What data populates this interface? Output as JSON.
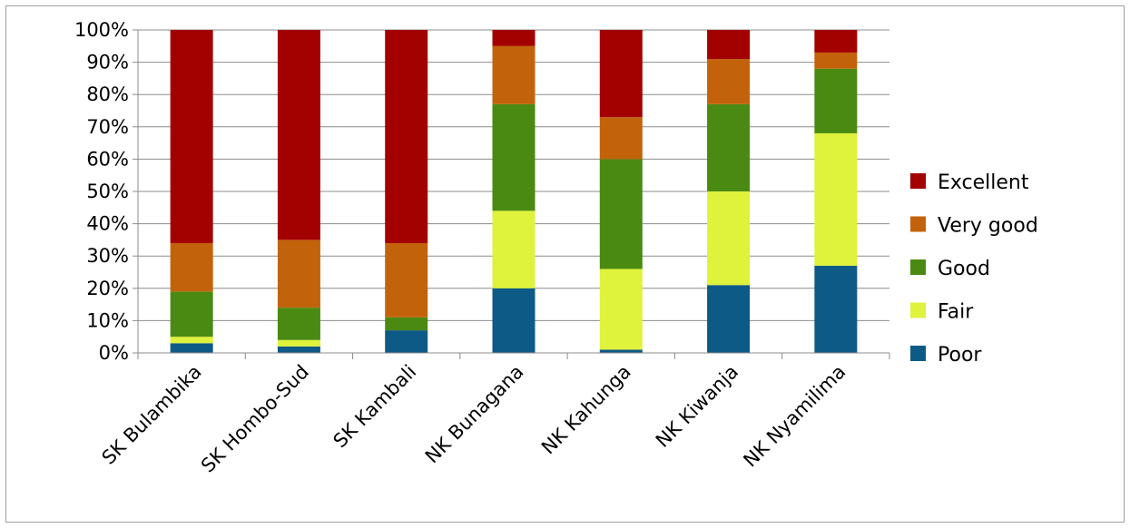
{
  "chart_data": {
    "type": "bar",
    "stacked": true,
    "normalized": true,
    "categories": [
      "SK Bulambika",
      "SK Hombo-Sud",
      "SK Kambali",
      "NK Bunagana",
      "NK Kahunga",
      "NK Kiwanja",
      "NK Nyamilima"
    ],
    "series": [
      {
        "name": "Poor",
        "color": "#0e5a86",
        "values": [
          3,
          2,
          7,
          20,
          1,
          21,
          27
        ]
      },
      {
        "name": "Fair",
        "color": "#dff23c",
        "values": [
          2,
          2,
          0,
          24,
          25,
          29,
          41
        ]
      },
      {
        "name": "Good",
        "color": "#4a8a12",
        "values": [
          14,
          10,
          4,
          33,
          34,
          27,
          20
        ]
      },
      {
        "name": "Very good",
        "color": "#c2630c",
        "values": [
          15,
          21,
          23,
          18,
          13,
          14,
          5
        ]
      },
      {
        "name": "Excellent",
        "color": "#a30000",
        "values": [
          66,
          65,
          66,
          5,
          27,
          9,
          7
        ]
      }
    ],
    "ylim": [
      0,
      100
    ],
    "yticks": [
      "0%",
      "10%",
      "20%",
      "30%",
      "40%",
      "50%",
      "60%",
      "70%",
      "80%",
      "90%",
      "100%"
    ],
    "grid": true,
    "legend": "right",
    "legend_order": [
      "Excellent",
      "Very good",
      "Good",
      "Fair",
      "Poor"
    ],
    "title": "",
    "xlabel": "",
    "ylabel": ""
  }
}
